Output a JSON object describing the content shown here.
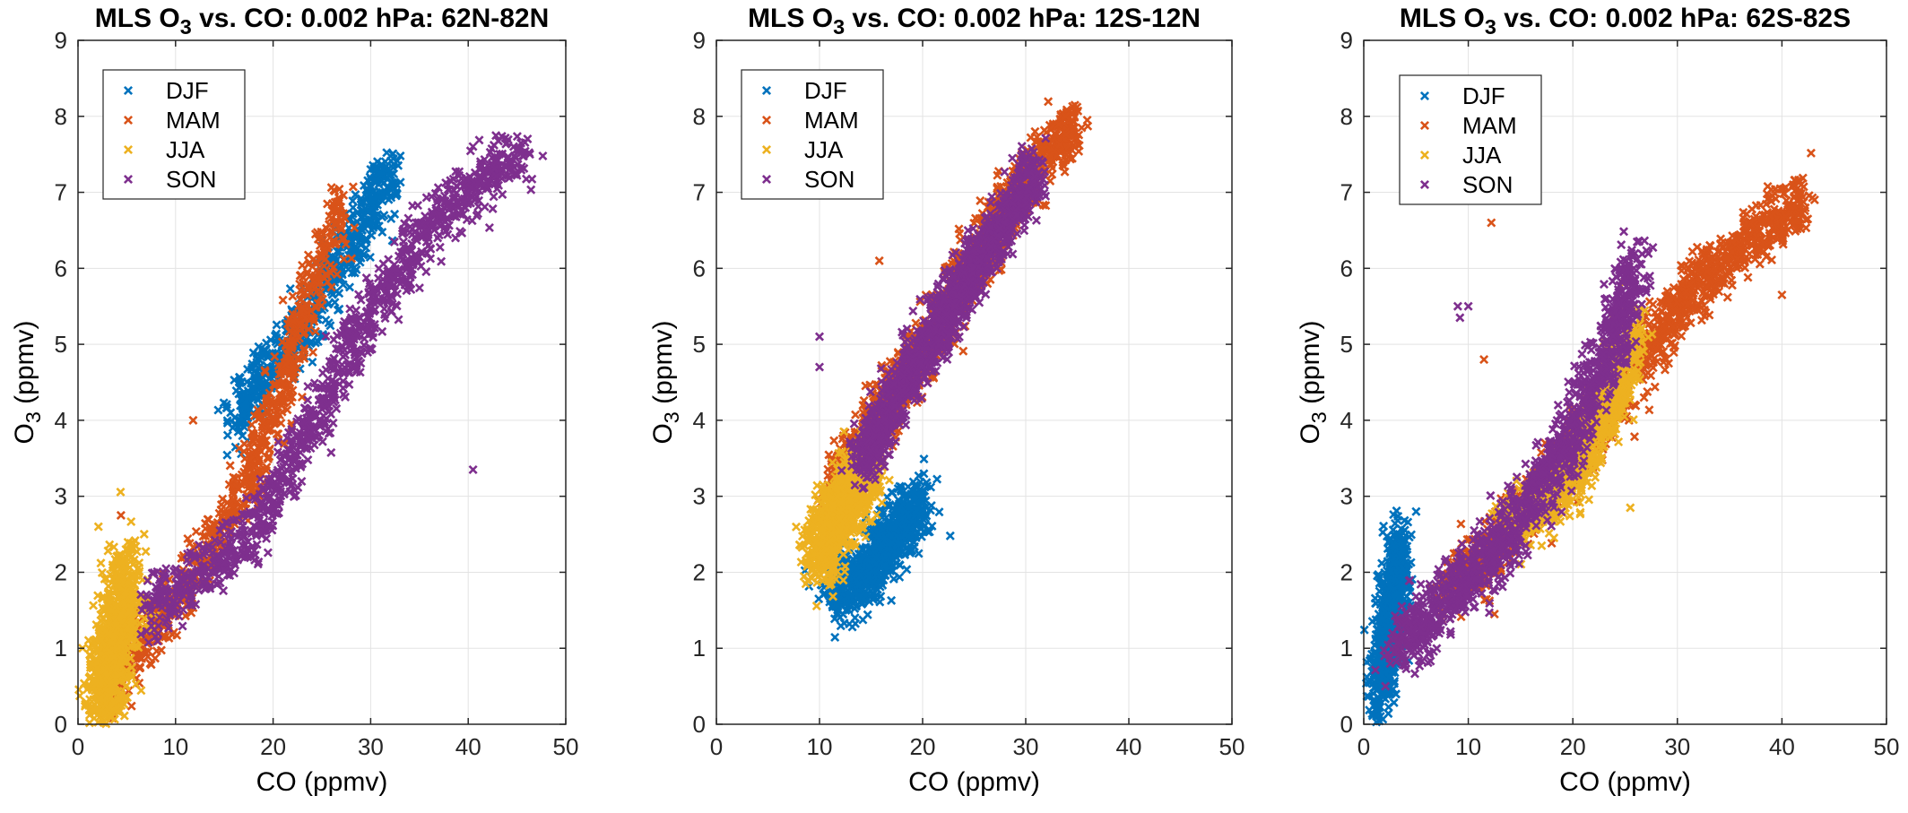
{
  "colors": {
    "DJF": "#0072BD",
    "MAM": "#D95319",
    "JJA": "#EDB120",
    "SON": "#7E2F8E"
  },
  "chart_data": [
    {
      "type": "scatter",
      "title": "MLS O3 vs. CO: 0.002 hPa: 62N-82N",
      "title_parts": {
        "pre": "MLS O",
        "sub": "3",
        "post": " vs. CO: 0.002 hPa: 62N-82N"
      },
      "xlabel": "CO (ppmv)",
      "ylabel_parts": {
        "pre": "O",
        "sub": "3",
        "post": " (ppmv)"
      },
      "xlim": [
        0,
        50
      ],
      "ylim": [
        0,
        9
      ],
      "xticks": [
        0,
        10,
        20,
        30,
        40,
        50
      ],
      "yticks": [
        0,
        1,
        2,
        3,
        4,
        5,
        6,
        7,
        8,
        9
      ],
      "grid": true,
      "legend_position": "top-left",
      "series": [
        {
          "name": "DJF",
          "color": "#0072BD",
          "n": 650,
          "outliers": [],
          "segments": [
            {
              "x": [
                16,
                19,
                23,
                26,
                29,
                32
              ],
              "y": [
                4.0,
                4.6,
                5.2,
                5.9,
                6.5,
                7.4
              ],
              "xw": 1.4,
              "yw": 0.28
            }
          ]
        },
        {
          "name": "MAM",
          "color": "#D95319",
          "n": 850,
          "outliers": [
            [
              11.8,
              4.0
            ],
            [
              4.4,
              2.75
            ]
          ],
          "segments": [
            {
              "x": [
                3,
                6,
                9,
                12,
                15,
                18,
                21,
                24,
                27
              ],
              "y": [
                0.5,
                1.0,
                1.5,
                2.0,
                2.6,
                3.4,
                4.5,
                5.7,
                6.8
              ],
              "xw": 1.2,
              "yw": 0.28
            }
          ]
        },
        {
          "name": "JJA",
          "color": "#EDB120",
          "n": 850,
          "outliers": [
            [
              2.1,
              2.6
            ]
          ],
          "segments": [
            {
              "x": [
                2.0,
                5.5
              ],
              "y": [
                0.1,
                2.0
              ],
              "xw": 1.6,
              "yw": 0.5
            }
          ]
        },
        {
          "name": "SON",
          "color": "#7E2F8E",
          "n": 1100,
          "outliers": [
            [
              40.5,
              3.35
            ]
          ],
          "segments": [
            {
              "x": [
                7,
                12,
                17,
                21,
                25,
                28,
                31,
                34,
                37,
                40,
                43,
                46
              ],
              "y": [
                1.5,
                1.9,
                2.4,
                3.2,
                4.2,
                5.0,
                5.6,
                6.2,
                6.7,
                7.0,
                7.4,
                7.5
              ],
              "xw": 1.3,
              "yw": 0.28
            }
          ]
        }
      ]
    },
    {
      "type": "scatter",
      "title": "MLS O3 vs. CO: 0.002 hPa: 12S-12N",
      "title_parts": {
        "pre": "MLS O",
        "sub": "3",
        "post": " vs. CO: 0.002 hPa: 12S-12N"
      },
      "xlabel": "CO (ppmv)",
      "ylabel_parts": {
        "pre": "O",
        "sub": "3",
        "post": " (ppmv)"
      },
      "xlim": [
        0,
        50
      ],
      "ylim": [
        0,
        9
      ],
      "xticks": [
        0,
        10,
        20,
        30,
        40,
        50
      ],
      "yticks": [
        0,
        1,
        2,
        3,
        4,
        5,
        6,
        7,
        8,
        9
      ],
      "grid": true,
      "legend_position": "top-left",
      "series": [
        {
          "name": "DJF",
          "color": "#0072BD",
          "n": 800,
          "outliers": [],
          "segments": [
            {
              "x": [
                11,
                14,
                17,
                20
              ],
              "y": [
                1.8,
                1.9,
                2.5,
                2.9
              ],
              "xw": 1.3,
              "yw": 0.3
            }
          ]
        },
        {
          "name": "MAM",
          "color": "#D95319",
          "n": 1300,
          "outliers": [
            [
              15.8,
              6.1
            ],
            [
              10.2,
              2.7
            ]
          ],
          "segments": [
            {
              "x": [
                11,
                14,
                17,
                20,
                23,
                26,
                29,
                32,
                35
              ],
              "y": [
                3.0,
                3.7,
                4.3,
                4.9,
                5.6,
                6.3,
                7.0,
                7.5,
                7.9
              ],
              "xw": 1.3,
              "yw": 0.28
            }
          ]
        },
        {
          "name": "JJA",
          "color": "#EDB120",
          "n": 900,
          "outliers": [],
          "segments": [
            {
              "x": [
                9.5,
                12,
                15
              ],
              "y": [
                2.2,
                2.8,
                3.4
              ],
              "xw": 1.3,
              "yw": 0.38
            }
          ]
        },
        {
          "name": "SON",
          "color": "#7E2F8E",
          "n": 1300,
          "outliers": [
            [
              10.0,
              5.1
            ],
            [
              10.0,
              4.7
            ]
          ],
          "segments": [
            {
              "x": [
                14,
                17,
                20,
                23,
                26,
                29,
                31
              ],
              "y": [
                3.4,
                4.2,
                4.9,
                5.6,
                6.2,
                6.8,
                7.3
              ],
              "xw": 1.2,
              "yw": 0.28
            }
          ]
        }
      ]
    },
    {
      "type": "scatter",
      "title": "MLS O3 vs. CO: 0.002 hPa: 62S-82S",
      "title_parts": {
        "pre": "MLS O",
        "sub": "3",
        "post": " vs. CO: 0.002 hPa: 62S-82S"
      },
      "xlabel": "CO (ppmv)",
      "ylabel_parts": {
        "pre": "O",
        "sub": "3",
        "post": " (ppmv)"
      },
      "xlim": [
        0,
        50
      ],
      "ylim": [
        0,
        9
      ],
      "xticks": [
        0,
        10,
        20,
        30,
        40,
        50
      ],
      "yticks": [
        0,
        1,
        2,
        3,
        4,
        5,
        6,
        7,
        8,
        9
      ],
      "grid": true,
      "legend_position": "top-left",
      "series": [
        {
          "name": "DJF",
          "color": "#0072BD",
          "n": 800,
          "outliers": [],
          "segments": [
            {
              "x": [
                1.5,
                3.5
              ],
              "y": [
                0.5,
                2.3
              ],
              "xw": 1.0,
              "yw": 0.45
            }
          ]
        },
        {
          "name": "MAM",
          "color": "#D95319",
          "n": 1400,
          "outliers": [
            [
              12.2,
              6.6
            ],
            [
              11.5,
              4.8
            ],
            [
              12.5,
              1.45
            ],
            [
              40.0,
              5.65
            ]
          ],
          "segments": [
            {
              "x": [
                8,
                12,
                16,
                20,
                24,
                28,
                32,
                36,
                40,
                42
              ],
              "y": [
                1.8,
                2.3,
                2.9,
                3.5,
                4.3,
                5.1,
                5.8,
                6.3,
                6.7,
                6.9
              ],
              "xw": 1.4,
              "yw": 0.28
            }
          ]
        },
        {
          "name": "JJA",
          "color": "#EDB120",
          "n": 900,
          "outliers": [
            [
              25.5,
              2.85
            ]
          ],
          "segments": [
            {
              "x": [
                14,
                18,
                21,
                24,
                26
              ],
              "y": [
                2.6,
                3.0,
                3.6,
                4.4,
                5.2
              ],
              "xw": 1.4,
              "yw": 0.3
            }
          ]
        },
        {
          "name": "SON",
          "color": "#7E2F8E",
          "n": 1300,
          "outliers": [
            [
              9.0,
              5.5
            ],
            [
              9.2,
              5.35
            ],
            [
              10.0,
              5.5
            ]
          ],
          "segments": [
            {
              "x": [
                3,
                6,
                9,
                12,
                15,
                18,
                21,
                24,
                26
              ],
              "y": [
                1.0,
                1.4,
                1.8,
                2.2,
                2.7,
                3.4,
                4.2,
                5.1,
                6.1
              ],
              "xw": 1.3,
              "yw": 0.3
            }
          ]
        }
      ]
    }
  ]
}
